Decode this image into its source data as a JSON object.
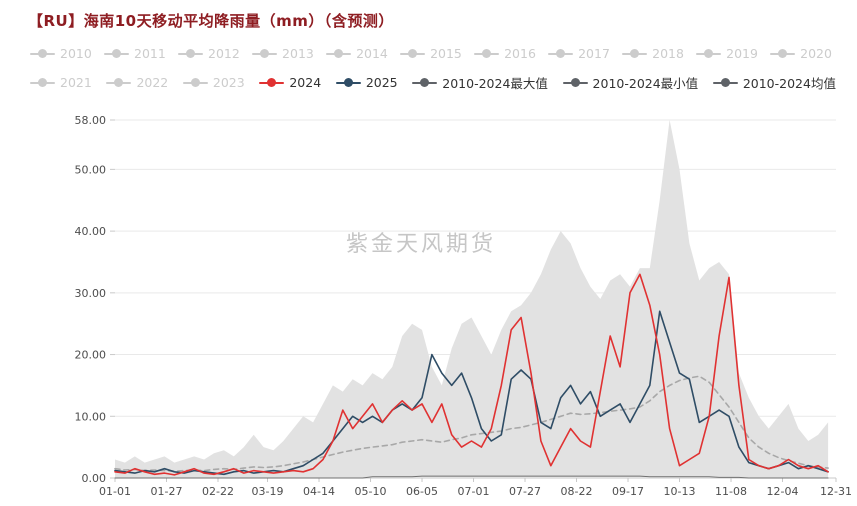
{
  "title": "【RU】海南10天移动平均降雨量（mm）（含预测）",
  "watermark": "紫金天风期货",
  "colors": {
    "title": "#8e1d22",
    "series_2024": "#e03232",
    "series_2025": "#2f4d66",
    "stats_marker": "#5f6368",
    "band_fill": "#e2e2e2",
    "mean_dash": "#a8a8a8",
    "min_line": "#707070",
    "axis_text": "#4d4d4d"
  },
  "legend": {
    "disabled_color": "#cccccc",
    "rows": [
      [
        {
          "key": "2010",
          "label": "2010",
          "active": false
        },
        {
          "key": "2011",
          "label": "2011",
          "active": false
        },
        {
          "key": "2012",
          "label": "2012",
          "active": false
        },
        {
          "key": "2013",
          "label": "2013",
          "active": false
        },
        {
          "key": "2014",
          "label": "2014",
          "active": false
        },
        {
          "key": "2015",
          "label": "2015",
          "active": false
        },
        {
          "key": "2016",
          "label": "2016",
          "active": false
        },
        {
          "key": "2017",
          "label": "2017",
          "active": false
        },
        {
          "key": "2018",
          "label": "2018",
          "active": false
        },
        {
          "key": "2019",
          "label": "2019",
          "active": false
        },
        {
          "key": "2020",
          "label": "2020",
          "active": false
        }
      ],
      [
        {
          "key": "2021",
          "label": "2021",
          "active": false
        },
        {
          "key": "2022",
          "label": "2022",
          "active": false
        },
        {
          "key": "2023",
          "label": "2023",
          "active": false
        },
        {
          "key": "2024",
          "label": "2024",
          "active": true,
          "color": "#e03232"
        },
        {
          "key": "2025",
          "label": "2025",
          "active": true,
          "color": "#2f4d66"
        },
        {
          "key": "max",
          "label": "2010-2024最大值",
          "active": true,
          "color": "#5f6368"
        },
        {
          "key": "min",
          "label": "2010-2024最小值",
          "active": true,
          "color": "#5f6368"
        },
        {
          "key": "mean",
          "label": "2010-2024均值",
          "active": true,
          "color": "#5f6368"
        }
      ]
    ]
  },
  "chart_data": {
    "type": "line",
    "title": "【RU】海南10天移动平均降雨量（mm）（含预测）",
    "ylim": [
      0,
      58
    ],
    "y_ticks": [
      0,
      10,
      20,
      30,
      40,
      50,
      58
    ],
    "y_tick_labels": [
      "0.00",
      "10.00",
      "20.00",
      "30.00",
      "40.00",
      "50.00",
      "58.00"
    ],
    "x_tick_labels": [
      "01-01",
      "01-27",
      "02-22",
      "03-19",
      "04-14",
      "05-10",
      "06-05",
      "07-01",
      "07-27",
      "08-22",
      "09-17",
      "10-13",
      "11-08",
      "12-04",
      "12-31"
    ],
    "x_tick_days": [
      1,
      27,
      53,
      78,
      104,
      130,
      156,
      182,
      208,
      234,
      260,
      286,
      312,
      338,
      365
    ],
    "x_start_day": 1,
    "x_step_days": 5,
    "x_end_day": 365,
    "grid": true,
    "legend_position": "top",
    "series": [
      {
        "key": "max-band",
        "name": "2010-2024最大值",
        "render": "area",
        "color": "#e2e2e2",
        "values": [
          3,
          2.5,
          3.5,
          2.5,
          3,
          3.5,
          2.5,
          3,
          3.5,
          3,
          4,
          4.5,
          3.5,
          5,
          7,
          5,
          4.5,
          6,
          8,
          10,
          9,
          12,
          15,
          14,
          16,
          15,
          17,
          16,
          18,
          23,
          25,
          24,
          18,
          15,
          21,
          25,
          26,
          23,
          20,
          24,
          27,
          28,
          30,
          33,
          37,
          40,
          38,
          34,
          31,
          29,
          32,
          33,
          31,
          34,
          34,
          45,
          58,
          50,
          38,
          32,
          34,
          35,
          33,
          17,
          13,
          10,
          8,
          10,
          12,
          8,
          6,
          7,
          9
        ]
      },
      {
        "key": "min-line",
        "name": "2010-2024最小值",
        "render": "line",
        "color": "#707070",
        "width": 1,
        "values": [
          0,
          0,
          0,
          0,
          0,
          0,
          0,
          0,
          0,
          0,
          0,
          0,
          0,
          0,
          0,
          0,
          0,
          0,
          0,
          0,
          0,
          0,
          0,
          0,
          0,
          0,
          0.2,
          0.2,
          0.2,
          0.2,
          0.2,
          0.3,
          0.3,
          0.3,
          0.3,
          0.3,
          0.3,
          0.3,
          0.3,
          0.3,
          0.3,
          0.3,
          0.3,
          0.3,
          0.3,
          0.3,
          0.3,
          0.3,
          0.3,
          0.3,
          0.3,
          0.3,
          0.3,
          0.3,
          0.2,
          0.2,
          0.2,
          0.2,
          0.2,
          0.2,
          0.2,
          0.1,
          0.1,
          0.1,
          0,
          0,
          0,
          0,
          0,
          0,
          0,
          0,
          0
        ]
      },
      {
        "key": "mean-line",
        "name": "2010-2024均值",
        "render": "line",
        "color": "#a8a8a8",
        "width": 1.6,
        "dash": "5,4",
        "values": [
          1.5,
          1.3,
          1.4,
          1.2,
          1.3,
          1.2,
          1.1,
          1.2,
          1.3,
          1.2,
          1.4,
          1.5,
          1.4,
          1.6,
          1.8,
          1.7,
          1.8,
          2,
          2.3,
          2.6,
          3,
          3.4,
          3.8,
          4.2,
          4.5,
          4.8,
          5,
          5.2,
          5.4,
          5.8,
          6,
          6.2,
          6,
          5.8,
          6.2,
          6.5,
          7,
          7.2,
          7.4,
          7.6,
          8,
          8.2,
          8.6,
          9,
          9.5,
          10,
          10.5,
          10.3,
          10.4,
          10.6,
          10.8,
          11,
          11.2,
          11.5,
          12.5,
          14,
          15,
          15.8,
          16.2,
          16.5,
          15.5,
          13.5,
          11.5,
          9,
          6.5,
          5,
          4,
          3.3,
          2.8,
          2.4,
          2,
          1.8,
          1.6
        ]
      },
      {
        "key": "line-2025",
        "name": "2025",
        "render": "line",
        "color": "#2f4d66",
        "width": 1.6,
        "values": [
          1.2,
          1,
          0.8,
          1.2,
          1,
          1.5,
          1,
          0.8,
          1.2,
          1,
          0.8,
          0.6,
          1,
          1.2,
          0.8,
          1,
          1.2,
          1,
          1.5,
          2,
          3,
          4,
          6,
          8,
          10,
          9,
          10,
          9,
          11,
          12,
          11,
          13,
          20,
          17,
          15,
          17,
          13,
          8,
          6,
          7,
          16,
          17.5,
          16,
          9,
          8,
          13,
          15,
          12,
          14,
          10,
          11,
          12,
          9,
          12,
          15,
          27,
          22,
          17,
          16,
          9,
          10,
          11,
          10,
          5,
          2.5,
          2,
          1.5,
          2,
          2.5,
          1.5,
          2,
          1.5,
          1
        ]
      },
      {
        "key": "line-2024",
        "name": "2024",
        "render": "line",
        "color": "#e03232",
        "width": 1.6,
        "values": [
          1,
          0.8,
          1.5,
          1,
          0.6,
          0.8,
          0.5,
          1,
          1.5,
          0.8,
          0.6,
          1,
          1.5,
          0.8,
          1.2,
          1,
          0.8,
          1,
          1.2,
          1,
          1.5,
          3,
          6,
          11,
          8,
          10,
          12,
          9,
          11,
          12.5,
          11,
          12,
          9,
          12,
          7,
          5,
          6,
          5,
          8,
          15,
          24,
          26,
          17,
          6,
          2,
          5,
          8,
          6,
          5,
          14,
          23,
          18,
          30,
          33,
          28,
          20,
          8,
          2,
          3,
          4,
          10,
          23,
          32.5,
          15,
          3,
          2,
          1.5,
          2,
          3,
          2,
          1.5,
          2,
          1
        ]
      }
    ]
  }
}
